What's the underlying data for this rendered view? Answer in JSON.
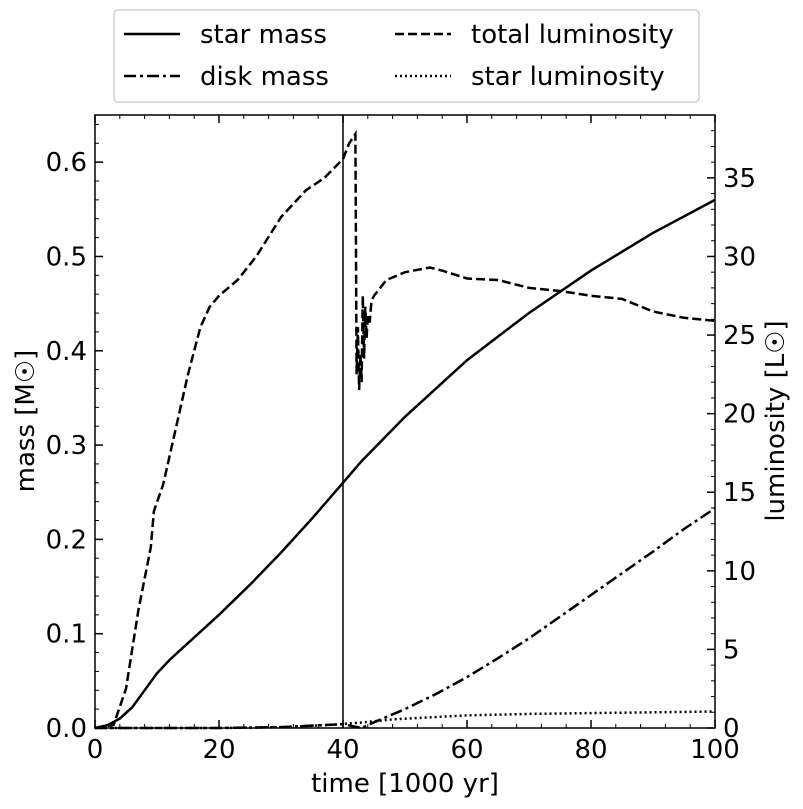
{
  "chart_data": {
    "type": "line",
    "title": "",
    "xlabel": "time [1000 yr]",
    "ylabel_left": "mass [M☉]",
    "ylabel_right": "luminosity [L☉]",
    "xlim": [
      0,
      100
    ],
    "ylim_left": [
      0,
      0.65
    ],
    "ylim_right": [
      0,
      39
    ],
    "x_ticks": [
      "0",
      "20",
      "40",
      "60",
      "80",
      "100"
    ],
    "y_left_ticks": [
      "0.0",
      "0.1",
      "0.2",
      "0.3",
      "0.4",
      "0.5",
      "0.6"
    ],
    "y_right_ticks": [
      "0",
      "5",
      "10",
      "15",
      "20",
      "25",
      "30",
      "35"
    ],
    "vertical_line_at": 40,
    "legend_position": "top, outside plot",
    "series": [
      {
        "name": "star mass",
        "axis": "left",
        "style": "solid",
        "x": [
          0,
          2,
          4,
          6,
          8,
          10,
          12,
          15,
          20,
          25,
          30,
          35,
          40,
          43,
          50,
          60,
          70,
          80,
          90,
          100
        ],
        "y": [
          0.0,
          0.003,
          0.01,
          0.022,
          0.04,
          0.058,
          0.072,
          0.09,
          0.12,
          0.152,
          0.186,
          0.222,
          0.26,
          0.283,
          0.33,
          0.39,
          0.44,
          0.485,
          0.525,
          0.56
        ]
      },
      {
        "name": "disk mass",
        "axis": "left",
        "style": "dashdot",
        "x": [
          0,
          10,
          20,
          30,
          40,
          43,
          45,
          50,
          55,
          60,
          65,
          70,
          75,
          80,
          85,
          90,
          95,
          100
        ],
        "y": [
          0.0,
          0.0,
          0.0,
          0.001,
          0.004,
          0.0,
          0.006,
          0.02,
          0.036,
          0.054,
          0.074,
          0.095,
          0.118,
          0.141,
          0.164,
          0.187,
          0.211,
          0.233
        ]
      },
      {
        "name": "total luminosity",
        "axis": "right",
        "style": "dashed",
        "x": [
          0,
          3,
          5,
          7,
          9,
          9.5,
          11,
          13,
          15,
          17,
          18.5,
          20,
          23,
          26,
          30,
          34,
          37,
          40,
          41,
          42,
          42.2,
          42.4,
          42.6,
          42.8,
          43.0,
          43.2,
          43.4,
          43.6,
          43.8,
          44.0,
          44.3,
          44.6,
          45,
          47,
          50,
          54,
          56,
          60,
          65,
          70,
          75,
          80,
          85,
          90,
          95,
          100
        ],
        "y": [
          0,
          0.2,
          2.5,
          7.5,
          11.5,
          13.8,
          15.5,
          19,
          22.5,
          25.5,
          26.8,
          27.5,
          28.5,
          30,
          32.5,
          34.2,
          35.0,
          36.2,
          37.2,
          37.8,
          22.5,
          25.5,
          21.5,
          23.8,
          22.0,
          27.5,
          23.5,
          26.8,
          24.8,
          26.2,
          25.8,
          27.2,
          27.5,
          28.5,
          29.0,
          29.3,
          29.1,
          28.6,
          28.5,
          28.0,
          27.8,
          27.5,
          27.3,
          26.5,
          26.1,
          25.9
        ]
      },
      {
        "name": "star luminosity",
        "axis": "right",
        "style": "dotted",
        "x": [
          0,
          10,
          20,
          30,
          38,
          43,
          48,
          55,
          60,
          70,
          80,
          90,
          100
        ],
        "y": [
          0,
          0,
          0,
          0.05,
          0.2,
          0.35,
          0.55,
          0.7,
          0.8,
          0.9,
          0.95,
          1.0,
          1.05
        ]
      }
    ]
  }
}
